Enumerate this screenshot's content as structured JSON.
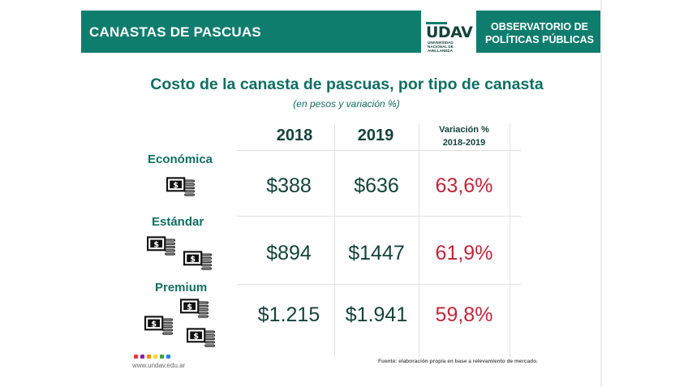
{
  "header": {
    "title": "CANASTAS DE PASCUAS",
    "logo_text": "UDAV",
    "logo_subtext": "UNIVERSIDAD NACIONAL DE AVELLANEDA",
    "observatory_line1": "OBSERVATORIO DE",
    "observatory_line2": "POLÍTICAS PÚBLICAS",
    "band_color": "#0f7d6e"
  },
  "title": "Costo de la canasta de pascuas, por tipo de canasta",
  "subtitle": "(en pesos y variación %)",
  "table": {
    "columns": {
      "year1": "2018",
      "year2": "2019",
      "variation_line1": "Variación %",
      "variation_line2": "2018-2019"
    },
    "rows": [
      {
        "label": "Económica",
        "icon": "money-bag-icon",
        "icon_count": 1,
        "v2018": "$388",
        "v2019": "$636",
        "variation": "63,6%"
      },
      {
        "label": "Estándar",
        "icon": "money-bag-icon",
        "icon_count": 2,
        "v2018": "$894",
        "v2019": "$1447",
        "variation": "61,9%"
      },
      {
        "label": "Premium",
        "icon": "money-bag-icon",
        "icon_count": 3,
        "v2018": "$1.215",
        "v2019": "$1.941",
        "variation": "59,8%"
      }
    ]
  },
  "footer": {
    "url": "www.undav.edu.ar",
    "source": "Fuente: elaboración propia en base a relevamiento de mercado.",
    "dot_colors": [
      "#e53935",
      "#8e24aa",
      "#fb8c00",
      "#fdd835",
      "#43a047",
      "#1e88e5"
    ]
  },
  "colors": {
    "accent": "#0f6f62",
    "variation_red": "#c0273a"
  }
}
